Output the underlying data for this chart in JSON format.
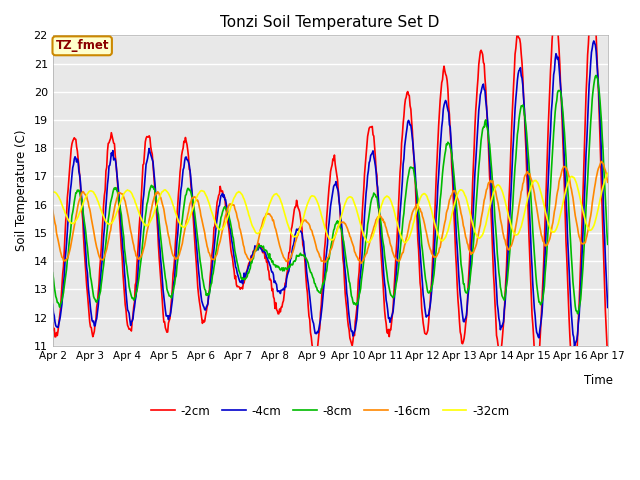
{
  "title": "Tonzi Soil Temperature Set D",
  "xlabel": "Time",
  "ylabel": "Soil Temperature (C)",
  "ylim": [
    11.0,
    22.0
  ],
  "yticks": [
    11.0,
    12.0,
    13.0,
    14.0,
    15.0,
    16.0,
    17.0,
    18.0,
    19.0,
    20.0,
    21.0,
    22.0
  ],
  "xtick_labels": [
    "Apr 2",
    "Apr 3",
    "Apr 4",
    "Apr 5",
    "Apr 6",
    "Apr 7",
    "Apr 8",
    "Apr 9",
    "Apr 10",
    "Apr 11",
    "Apr 12",
    "Apr 13",
    "Apr 14",
    "Apr 15",
    "Apr 16",
    "Apr 17"
  ],
  "legend_labels": [
    "-2cm",
    "-4cm",
    "-8cm",
    "-16cm",
    "-32cm"
  ],
  "colors": [
    "#ff0000",
    "#0000cc",
    "#00bb00",
    "#ff8800",
    "#ffff00"
  ],
  "line_width": 1.2,
  "bg_color": "#d8d8d8",
  "plot_bg_color": "#e0e0e0",
  "annotation_text": "TZ_fmet",
  "annotation_bg": "#ffffcc",
  "annotation_border": "#cc8800",
  "figsize": [
    6.4,
    4.8
  ],
  "dpi": 100
}
